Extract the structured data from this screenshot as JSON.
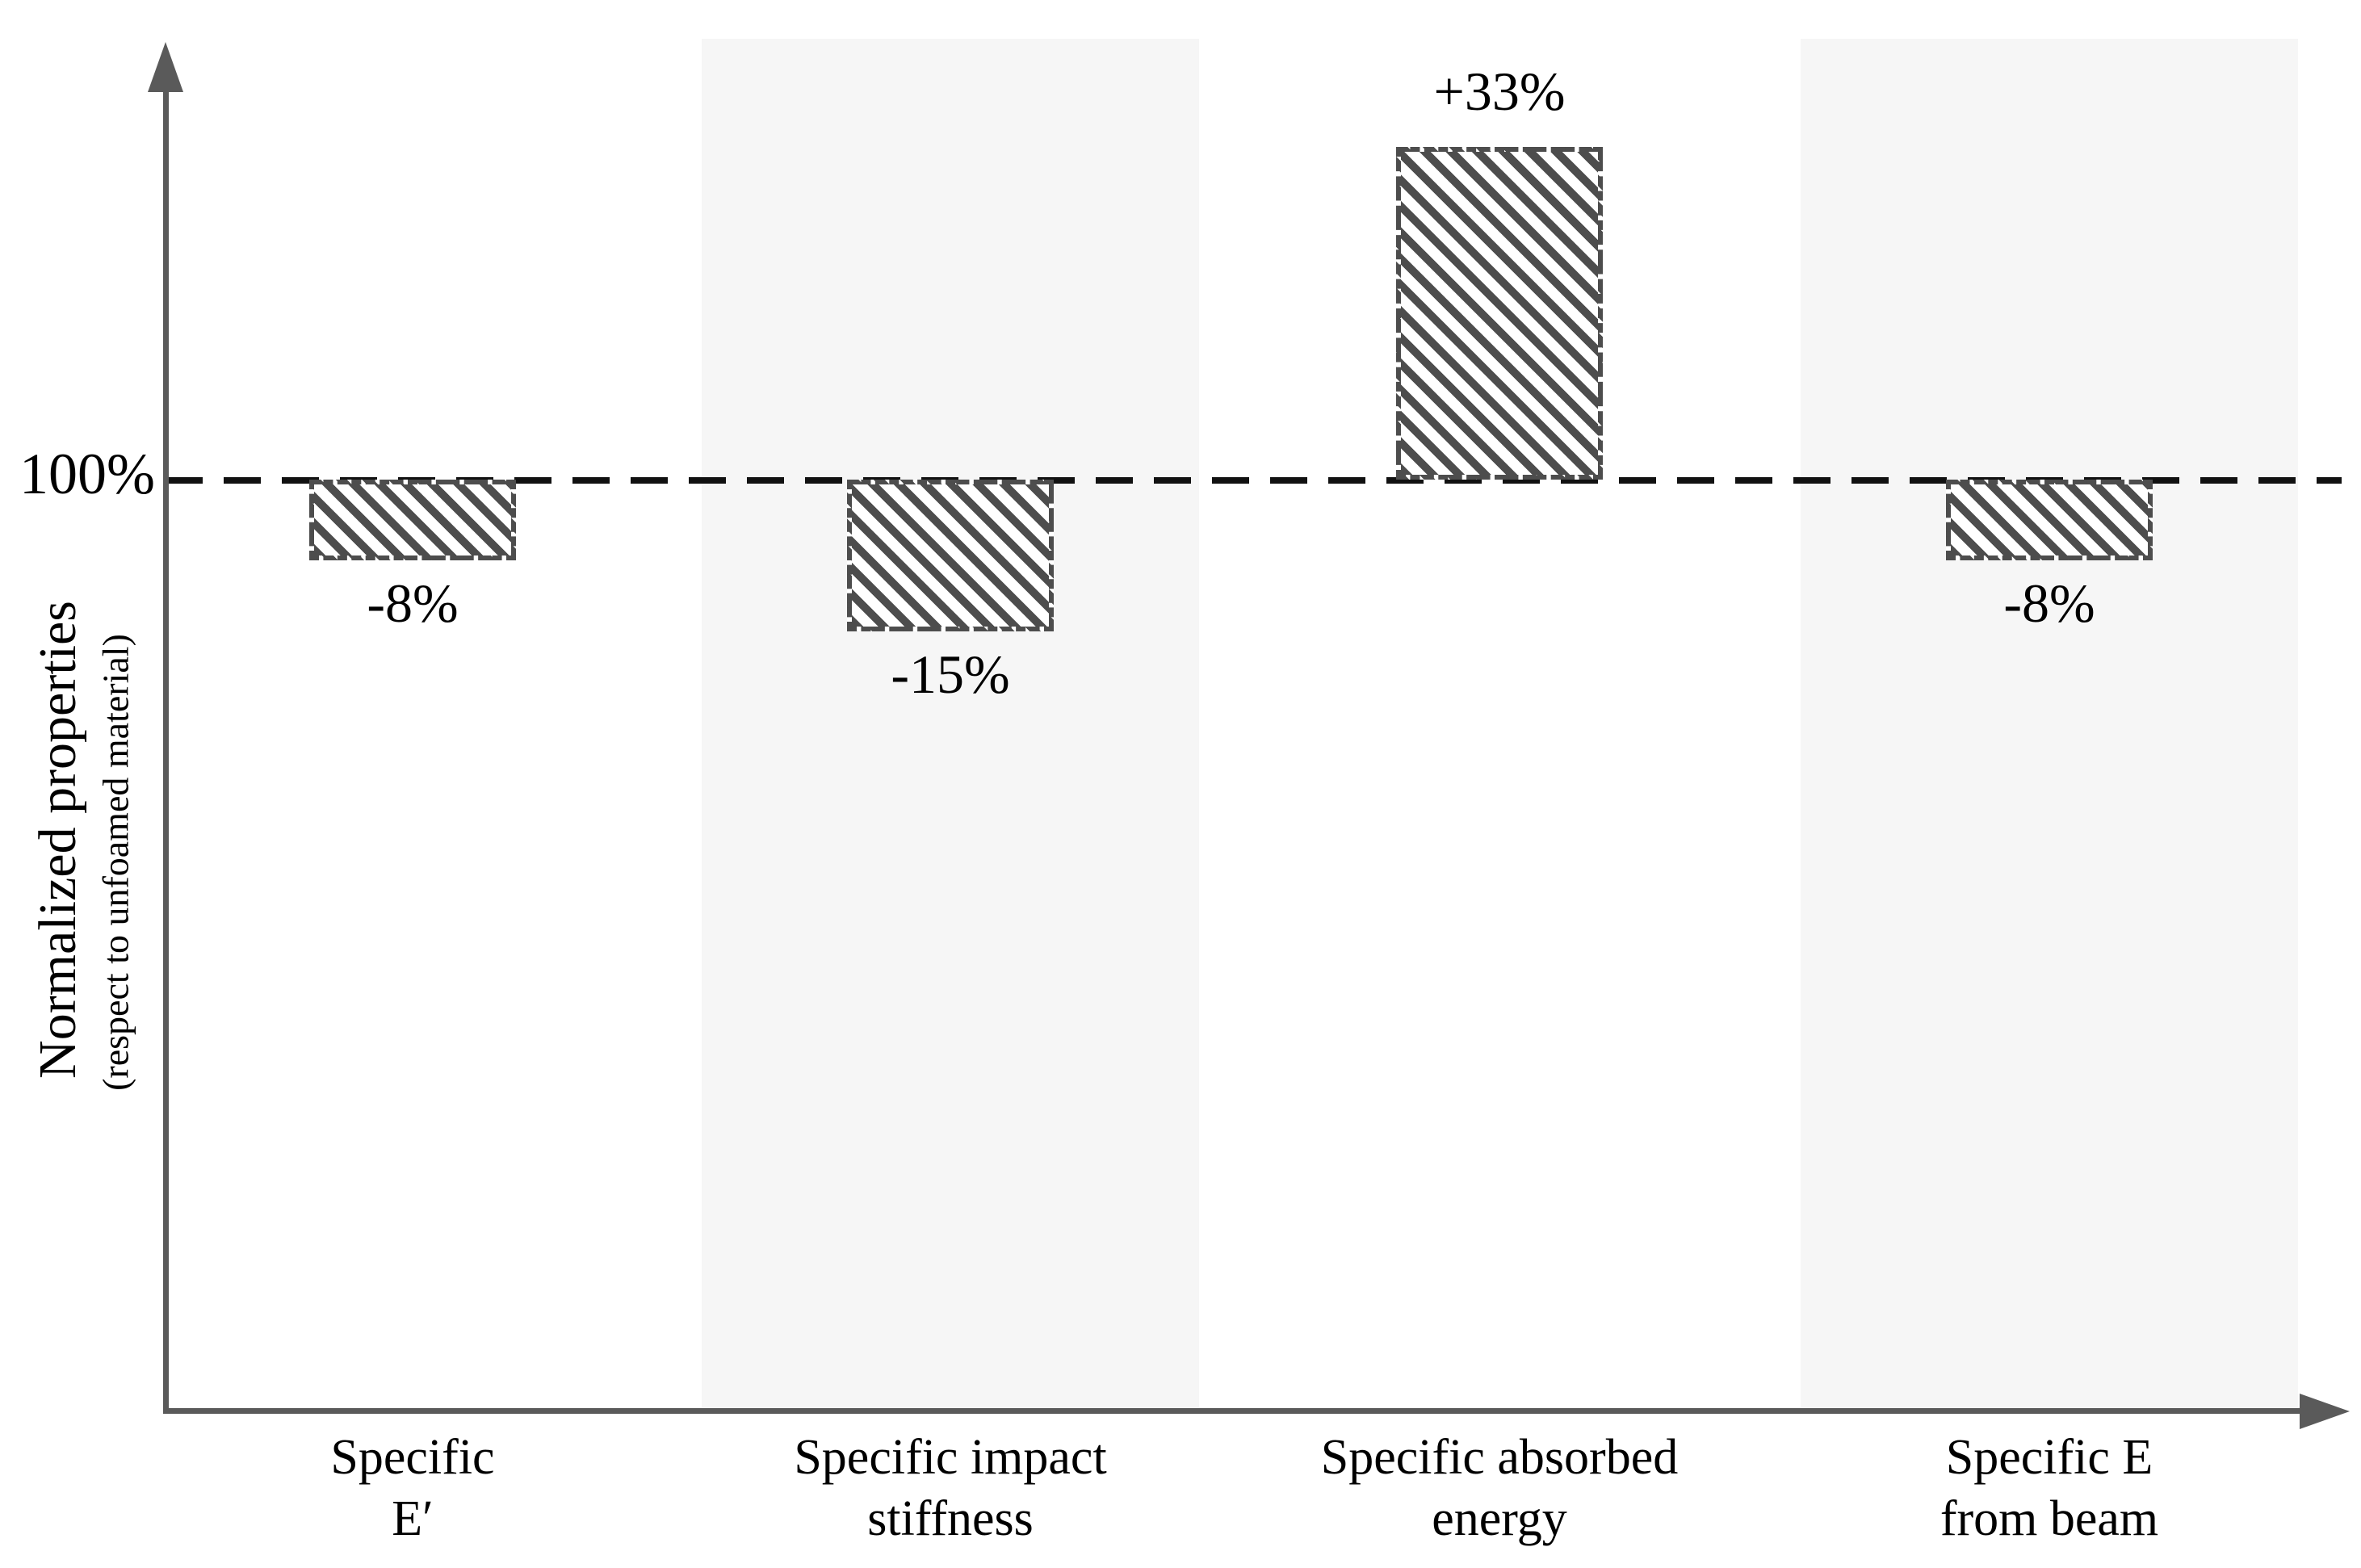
{
  "y_axis": {
    "title_main": "Normalized properties",
    "title_sub": "(respect to unfoamed material)"
  },
  "baseline": {
    "label": "100%",
    "value_pct": 100
  },
  "chart_data": {
    "type": "bar",
    "title": "",
    "xlabel": "",
    "ylabel": "Normalized properties (respect to unfoamed material)",
    "categories": [
      "Specific E′",
      "Specific impact stiffness",
      "Specific absorbed energy",
      "Specific E from beam"
    ],
    "category_lines": [
      [
        "Specific",
        "E′"
      ],
      [
        "Specific impact",
        "stiffness"
      ],
      [
        "Specific absorbed",
        "energy"
      ],
      [
        "Specific E",
        "from beam"
      ]
    ],
    "values_pct": [
      92,
      85,
      133,
      92
    ],
    "delta_pct": [
      -8,
      -15,
      33,
      -8
    ],
    "value_labels": [
      "-8%",
      "-15%",
      "+33%",
      "-8%"
    ],
    "baseline_pct": 100,
    "baseline_label": "100%",
    "baseline_style": "dashed",
    "shaded_categories": [
      1,
      3
    ],
    "grid": false,
    "legend": false,
    "ylim_pct_approx": [
      8,
      144
    ],
    "bar_style": "diagonal-hatch, dashed outline",
    "colors": {
      "hatch": "#4d4d4d",
      "bar_background": "#ffffff",
      "band": "#f6f6f6",
      "axis": "#5a5a5a",
      "baseline_line": "#111111",
      "text": "#000000"
    }
  }
}
